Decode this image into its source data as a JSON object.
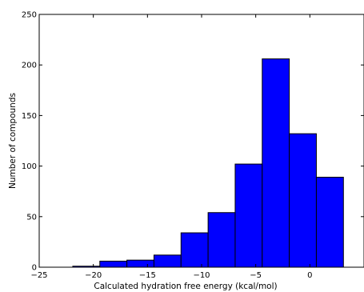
{
  "chart_data": {
    "type": "bar",
    "title": "",
    "xlabel": "Calculated hydration free energy (kcal/mol)",
    "ylabel": "Number of compounds",
    "xlim": [
      -25,
      5
    ],
    "ylim": [
      0,
      250
    ],
    "x_ticks": [
      -25,
      -20,
      -15,
      -10,
      -5,
      0
    ],
    "y_ticks": [
      0,
      50,
      100,
      150,
      200,
      250
    ],
    "grid": false,
    "bar_color": "#0000ff",
    "bins": [
      {
        "left": -21.9,
        "right": -19.4,
        "count": 1
      },
      {
        "left": -19.4,
        "right": -16.9,
        "count": 6
      },
      {
        "left": -16.9,
        "right": -14.4,
        "count": 7
      },
      {
        "left": -14.4,
        "right": -11.9,
        "count": 12
      },
      {
        "left": -11.9,
        "right": -9.4,
        "count": 34
      },
      {
        "left": -9.4,
        "right": -6.9,
        "count": 54
      },
      {
        "left": -6.9,
        "right": -4.4,
        "count": 102
      },
      {
        "left": -4.4,
        "right": -1.9,
        "count": 206
      },
      {
        "left": -1.9,
        "right": 0.6,
        "count": 132
      },
      {
        "left": 0.6,
        "right": 3.1,
        "count": 89
      }
    ]
  }
}
